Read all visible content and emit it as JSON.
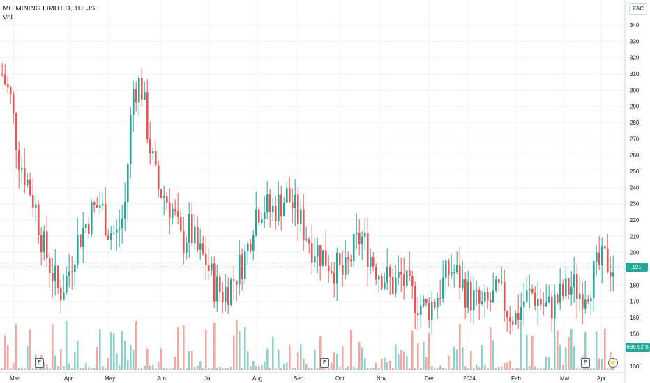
{
  "legend": {
    "title": "MC MINING LIMITED, 1D, JSE",
    "vol_label": "Vol"
  },
  "currency": "ZAC",
  "current_price_label": "191",
  "volume_label": "688.52 K",
  "events": {
    "earnings_label": "E",
    "dividend_icon": "lightning-icon"
  },
  "colors": {
    "up": "#26a69a",
    "down": "#ef5350",
    "up_vol": "#8fd0c8",
    "down_vol": "#f4a6a3",
    "grid": "#f0f3fa",
    "price_line": "#26a69a"
  },
  "chart_data": {
    "type": "candlestick",
    "title": "MC MINING LIMITED, 1D, JSE",
    "ylim": [
      125,
      345
    ],
    "y_ticks": [
      130,
      140,
      150,
      160,
      170,
      180,
      190,
      200,
      210,
      220,
      230,
      240,
      250,
      260,
      270,
      280,
      290,
      300,
      310,
      320,
      330,
      340
    ],
    "x_tick_labels": [
      "Mar",
      "Apr",
      "May",
      "Jun",
      "Jul",
      "Aug",
      "Sep",
      "Oct",
      "Nov",
      "Dec",
      "2024",
      "Feb",
      "Mar",
      "Apr"
    ],
    "last_price": 191,
    "last_volume": "688.52 K",
    "approx_closes": [
      310,
      295,
      260,
      245,
      230,
      205,
      190,
      175,
      185,
      205,
      215,
      225,
      230,
      215,
      210,
      225,
      300,
      305,
      270,
      240,
      235,
      225,
      205,
      215,
      200,
      195,
      180,
      175,
      180,
      190,
      200,
      225,
      230,
      225,
      230,
      235,
      225,
      215,
      205,
      200,
      195,
      190,
      185,
      200,
      210,
      200,
      190,
      185,
      180,
      185,
      175,
      170,
      165,
      170,
      180,
      190,
      185,
      175,
      170,
      165,
      170,
      175,
      165,
      160,
      170,
      175,
      170,
      165,
      170,
      175,
      180,
      175,
      180,
      190,
      195,
      191
    ]
  }
}
